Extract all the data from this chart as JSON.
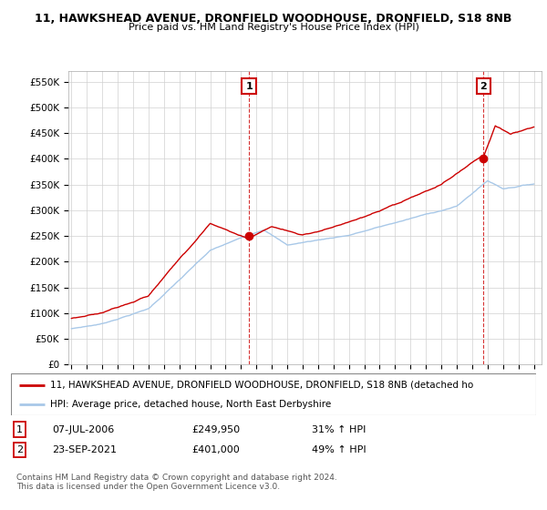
{
  "title1": "11, HAWKSHEAD AVENUE, DRONFIELD WOODHOUSE, DRONFIELD, S18 8NB",
  "title2": "Price paid vs. HM Land Registry's House Price Index (HPI)",
  "ylabel_ticks": [
    "£0",
    "£50K",
    "£100K",
    "£150K",
    "£200K",
    "£250K",
    "£300K",
    "£350K",
    "£400K",
    "£450K",
    "£500K",
    "£550K"
  ],
  "ylabel_values": [
    0,
    50000,
    100000,
    150000,
    200000,
    250000,
    300000,
    350000,
    400000,
    450000,
    500000,
    550000
  ],
  "ylim": [
    0,
    570000
  ],
  "transaction1_year": 2006.52,
  "transaction1_price": 249950,
  "transaction1_date": "07-JUL-2006",
  "transaction1_hpi_pct": "31%",
  "transaction2_year": 2021.73,
  "transaction2_price": 401000,
  "transaction2_date": "23-SEP-2021",
  "transaction2_hpi_pct": "49%",
  "legend_line1": "11, HAWKSHEAD AVENUE, DRONFIELD WOODHOUSE, DRONFIELD, S18 8NB (detached ho",
  "legend_line2": "HPI: Average price, detached house, North East Derbyshire",
  "footer1": "Contains HM Land Registry data © Crown copyright and database right 2024.",
  "footer2": "This data is licensed under the Open Government Licence v3.0.",
  "line_color_property": "#cc0000",
  "line_color_hpi": "#a8c8e8",
  "marker_color": "#cc0000",
  "background_color": "#ffffff",
  "grid_color": "#d0d0d0",
  "box_color": "#cc0000"
}
